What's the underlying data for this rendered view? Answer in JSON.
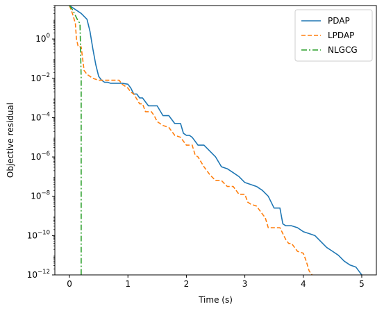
{
  "chart_data": {
    "type": "line",
    "xlabel": "Time (s)",
    "ylabel": "Objective residual",
    "xlim": [
      -0.25,
      5.25
    ],
    "ylim_log10": [
      -12,
      1.7
    ],
    "yscale": "log",
    "grid": false,
    "legend_position": "top-right",
    "x_ticks": [
      {
        "value": 0,
        "label": "0"
      },
      {
        "value": 1,
        "label": "1"
      },
      {
        "value": 2,
        "label": "2"
      },
      {
        "value": 3,
        "label": "3"
      },
      {
        "value": 4,
        "label": "4"
      },
      {
        "value": 5,
        "label": "5"
      }
    ],
    "y_ticks": [
      {
        "exp": 0,
        "base": "10",
        "sup": "0"
      },
      {
        "exp": -2,
        "base": "10",
        "sup": "−2"
      },
      {
        "exp": -4,
        "base": "10",
        "sup": "−4"
      },
      {
        "exp": -6,
        "base": "10",
        "sup": "−6"
      },
      {
        "exp": -8,
        "base": "10",
        "sup": "−8"
      },
      {
        "exp": -10,
        "base": "10",
        "sup": "−10"
      },
      {
        "exp": -12,
        "base": "10",
        "sup": "−12"
      }
    ],
    "series": [
      {
        "name": "PDAP",
        "color": "#1f77b4",
        "dash": "solid",
        "x": [
          0.0,
          0.1,
          0.2,
          0.3,
          0.35,
          0.4,
          0.45,
          0.5,
          0.55,
          0.6,
          0.65,
          0.7,
          0.8,
          0.9,
          1.0,
          1.05,
          1.1,
          1.15,
          1.2,
          1.25,
          1.35,
          1.4,
          1.5,
          1.6,
          1.7,
          1.8,
          1.9,
          1.95,
          2.0,
          2.05,
          2.1,
          2.2,
          2.3,
          2.4,
          2.5,
          2.6,
          2.7,
          2.8,
          2.9,
          3.0,
          3.1,
          3.2,
          3.3,
          3.4,
          3.5,
          3.55,
          3.6,
          3.65,
          3.7,
          3.8,
          3.9,
          4.0,
          4.1,
          4.2,
          4.3,
          4.4,
          4.5,
          4.6,
          4.7,
          4.8,
          4.9,
          4.95,
          5.0
        ],
        "y_log10": [
          1.7,
          1.5,
          1.3,
          1.0,
          0.4,
          -0.5,
          -1.3,
          -1.9,
          -2.1,
          -2.2,
          -2.2,
          -2.25,
          -2.25,
          -2.25,
          -2.3,
          -2.5,
          -2.8,
          -2.8,
          -3.0,
          -3.0,
          -3.4,
          -3.4,
          -3.4,
          -3.9,
          -3.9,
          -4.3,
          -4.3,
          -4.8,
          -4.9,
          -4.9,
          -5.0,
          -5.4,
          -5.4,
          -5.7,
          -6.0,
          -6.5,
          -6.6,
          -6.8,
          -7.0,
          -7.3,
          -7.4,
          -7.5,
          -7.7,
          -8.0,
          -8.6,
          -8.6,
          -8.6,
          -9.4,
          -9.5,
          -9.5,
          -9.6,
          -9.8,
          -9.9,
          -10.0,
          -10.3,
          -10.6,
          -10.8,
          -11.0,
          -11.3,
          -11.5,
          -11.6,
          -11.8,
          -12.0
        ]
      },
      {
        "name": "LPDAP",
        "color": "#ff7f0e",
        "dash": "dashed",
        "x": [
          0.0,
          0.05,
          0.1,
          0.12,
          0.15,
          0.2,
          0.25,
          0.3,
          0.4,
          0.5,
          0.6,
          0.7,
          0.8,
          0.85,
          0.9,
          1.0,
          1.05,
          1.1,
          1.2,
          1.25,
          1.3,
          1.4,
          1.45,
          1.5,
          1.6,
          1.7,
          1.8,
          1.9,
          2.0,
          2.05,
          2.1,
          2.15,
          2.2,
          2.3,
          2.4,
          2.5,
          2.6,
          2.7,
          2.8,
          2.9,
          3.0,
          3.05,
          3.1,
          3.2,
          3.3,
          3.35,
          3.4,
          3.5,
          3.6,
          3.65,
          3.7,
          3.75,
          3.8,
          3.9,
          4.0,
          4.05,
          4.1,
          4.15
        ],
        "y_log10": [
          1.7,
          1.3,
          0.8,
          0.0,
          -0.4,
          -0.4,
          -1.6,
          -1.8,
          -2.0,
          -2.1,
          -2.1,
          -2.1,
          -2.1,
          -2.1,
          -2.3,
          -2.5,
          -2.7,
          -2.8,
          -3.3,
          -3.3,
          -3.7,
          -3.7,
          -3.9,
          -4.2,
          -4.4,
          -4.5,
          -4.9,
          -5.0,
          -5.4,
          -5.4,
          -5.4,
          -5.9,
          -6.0,
          -6.5,
          -6.9,
          -7.2,
          -7.2,
          -7.5,
          -7.5,
          -7.9,
          -7.9,
          -8.3,
          -8.4,
          -8.5,
          -8.9,
          -9.1,
          -9.6,
          -9.6,
          -9.6,
          -9.9,
          -10.2,
          -10.4,
          -10.4,
          -10.8,
          -10.9,
          -11.3,
          -11.8,
          -12.0
        ]
      },
      {
        "name": "NLGCG",
        "color": "#2ca02c",
        "dash": "dashdot",
        "x": [
          0.0,
          0.05,
          0.1,
          0.15,
          0.18,
          0.18,
          0.19,
          0.2,
          0.2
        ],
        "y_log10": [
          1.7,
          1.5,
          1.2,
          0.9,
          0.8,
          0.8,
          -0.5,
          -2.0,
          -12.0
        ]
      }
    ]
  }
}
